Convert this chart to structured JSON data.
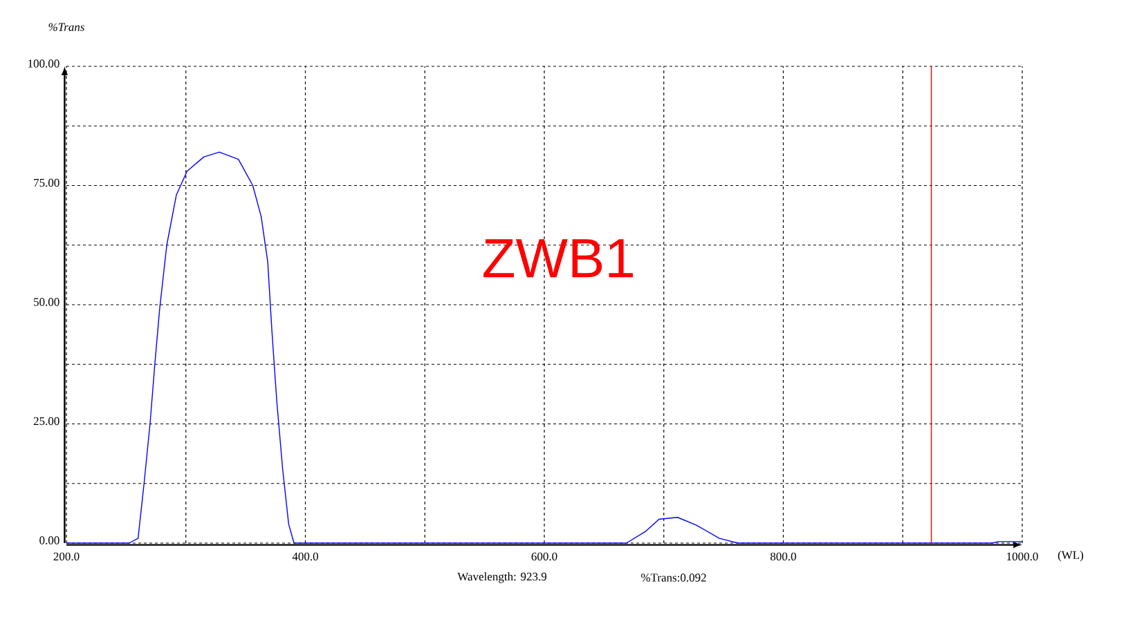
{
  "chart_data": {
    "type": "line",
    "title": "ZWB1",
    "xlabel": "(WL)",
    "ylabel": "%Trans",
    "annotations": [
      "Wavelength: 923.9",
      "%Trans:0.092"
    ],
    "series": [
      {
        "color": "#0000ff",
        "x": [
          200,
          252.5,
          260,
          265,
          270,
          274,
          278,
          284,
          292,
          301,
          315,
          328,
          344,
          356,
          363,
          368.5,
          372,
          376,
          381,
          386,
          390.5,
          668.7,
          684.5,
          696,
          711.5,
          727,
          746.5,
          762,
          975,
          980,
          1000
        ],
        "values": [
          0,
          0,
          1,
          12.5,
          25,
          37.5,
          49,
          62.5,
          73,
          78,
          81,
          82,
          80.5,
          75,
          68.5,
          59,
          44.5,
          30,
          15.5,
          4,
          0,
          0,
          2.4,
          5,
          5.4,
          3.8,
          1,
          0,
          0,
          0.3,
          0.3
        ]
      }
    ],
    "xlim": [
      200,
      1000
    ],
    "ylim": [
      0,
      100
    ],
    "xticks": [
      {
        "value": 200,
        "label": "200.0"
      },
      {
        "value": 300,
        "label": null
      },
      {
        "value": 400,
        "label": "400.0"
      },
      {
        "value": 500,
        "label": null
      },
      {
        "value": 600,
        "label": "600.0"
      },
      {
        "value": 700,
        "label": null
      },
      {
        "value": 800,
        "label": "800.0"
      },
      {
        "value": 900,
        "label": null
      },
      {
        "value": 1000,
        "label": "1000.0"
      }
    ],
    "yticks": [
      {
        "value": 0,
        "label": "0.00"
      },
      {
        "value": 12.5,
        "label": null
      },
      {
        "value": 25,
        "label": "25.00"
      },
      {
        "value": 37.5,
        "label": null
      },
      {
        "value": 50,
        "label": "50.00"
      },
      {
        "value": 62.5,
        "label": null
      },
      {
        "value": 75,
        "label": "75.00"
      },
      {
        "value": 87.5,
        "label": null
      },
      {
        "value": 100,
        "label": "100.00"
      }
    ],
    "grid": true,
    "ref_lines": [
      {
        "axis": "x",
        "value": 923.9,
        "color": "#ff0000"
      }
    ]
  }
}
